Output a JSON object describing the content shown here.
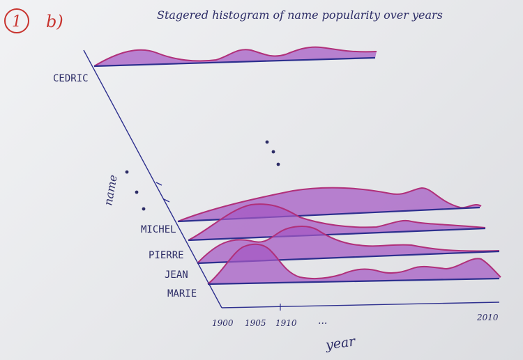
{
  "header": {
    "number": "1",
    "part": "b)",
    "title": "Stagered histogram of name popularity over years"
  },
  "axes": {
    "y_label": "name",
    "x_label": "year",
    "x_ticks": [
      "1900",
      "1905",
      "1910",
      "...",
      "2010"
    ]
  },
  "names": [
    "CEDRIC",
    "MICHEL",
    "PIERRE",
    "JEAN",
    "MARIE"
  ],
  "colors": {
    "fill": "#a458c4",
    "outline": "#b0307a",
    "axis": "#2d2f8e",
    "header_red": "#c8342f",
    "ink": "#2c2c66"
  }
}
